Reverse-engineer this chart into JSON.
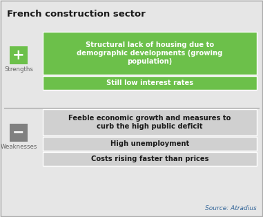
{
  "title": "French construction sector",
  "bg_color": "#e6e6e6",
  "border_color": "#aaaaaa",
  "title_color": "#1a1a1a",
  "title_fontsize": 9.5,
  "strengths_label": "Strengths",
  "strengths_icon": "+",
  "strengths_icon_bg": "#6cc04a",
  "strengths_icon_color": "#ffffff",
  "strengths_label_color": "#666666",
  "weaknesses_label": "Weaknesses",
  "weaknesses_icon": "−",
  "weaknesses_icon_bg": "#808080",
  "weaknesses_icon_color": "#ffffff",
  "weaknesses_label_color": "#666666",
  "strength_items": [
    "Structural lack of housing due to\ndemographic developments (growing\npopulation)",
    "Still low interest rates"
  ],
  "strength_item_bg": "#6cc04a",
  "strength_item_color": "#ffffff",
  "strength_item_fontsize": 7.2,
  "weakness_items": [
    "Feeble economic growth and measures to\ncurb the high public deficit",
    "High unemployment",
    "Costs rising faster than prices"
  ],
  "weakness_item_bg": "#d0d0d0",
  "weakness_item_color": "#1a1a1a",
  "weakness_item_fontsize": 7.2,
  "divider_color": "#999999",
  "source_text": "Source: Atradius",
  "source_color": "#336699",
  "source_fontsize": 6.5
}
